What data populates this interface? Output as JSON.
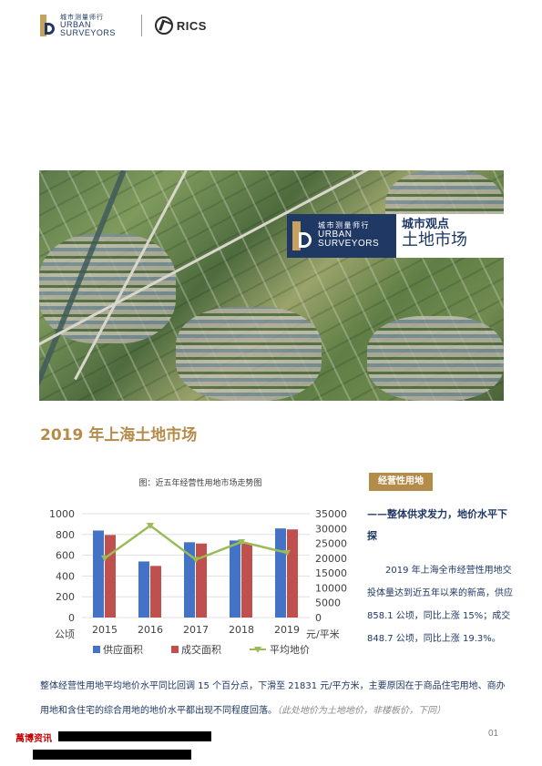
{
  "header": {
    "logo_cn": "城市测量师行",
    "logo_en_line1": "URBAN",
    "logo_en_line2": "SURVEYORS",
    "partner_logo": "RICS"
  },
  "hero": {
    "badge_cn": "城市测量师行",
    "badge_en_line1": "URBAN",
    "badge_en_line2": "SURVEYORS",
    "column_title": "城市观点",
    "column_subtitle": "土地市场"
  },
  "main_title": "2019 年上海土地市场",
  "chart_data": {
    "type": "bar",
    "title": "图：近五年经营性用地市场走势图",
    "categories": [
      "2015",
      "2016",
      "2017",
      "2018",
      "2019"
    ],
    "series": [
      {
        "name": "供应面积",
        "type": "bar",
        "axis": "left",
        "color": "#4472c4",
        "values": [
          838,
          540,
          725,
          742,
          858.1
        ]
      },
      {
        "name": "成交面积",
        "type": "bar",
        "axis": "left",
        "color": "#c0504d",
        "values": [
          795,
          497,
          713,
          712,
          848.7
        ]
      },
      {
        "name": "平均地价",
        "type": "line",
        "axis": "right",
        "color": "#9bbb59",
        "values": [
          20000,
          31000,
          19500,
          25500,
          21831
        ]
      }
    ],
    "y_left": {
      "ticks": [
        "0",
        "200",
        "400",
        "600",
        "800",
        "1000"
      ],
      "ylim": [
        0,
        1000
      ],
      "unit": "公顷"
    },
    "y_right": {
      "ticks": [
        "0",
        "5000",
        "10000",
        "15000",
        "20000",
        "25000",
        "30000",
        "35000"
      ],
      "ylim": [
        0,
        35000
      ],
      "unit": "元/平米"
    },
    "grid": true,
    "legend_position": "bottom"
  },
  "right_column": {
    "tag": "经营性用地",
    "subhead": "——整体供求发力，地价水平下探",
    "body": "2019 年上海全市经营性用地交投体量达到近五年以来的新高，供应 858.1 公顷，同比上涨 15%；成交 848.7 公顷，同比上涨 19.3%。"
  },
  "bottom_paragraph": {
    "text": "整体经营性用地平均地价水平同比回调 15 个百分点，下滑至 21831 元/平方米，主要原因在于商品住宅用地、商办用地和含住宅的综合用地的地价水平都出现不同程度回落。",
    "note": "（此处地价为土地地价，非楼板价，下同）"
  },
  "footer": {
    "tag": "萬博资讯",
    "page_number": "01"
  },
  "colors": {
    "navy": "#1f3864",
    "gold": "#b58b4a",
    "red": "#c00000"
  }
}
